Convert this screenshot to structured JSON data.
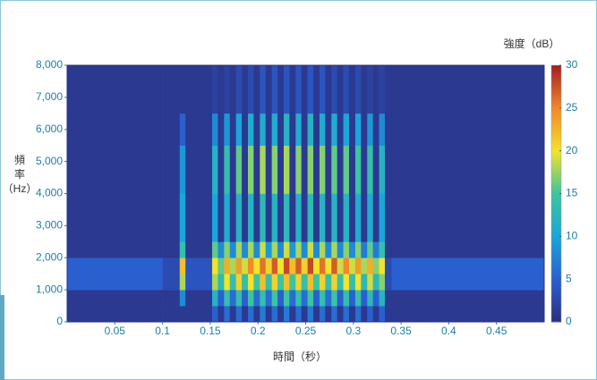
{
  "chart_data": {
    "type": "heatmap",
    "colorbar_title": "強度（dB）",
    "ylabel": [
      "頻",
      "率",
      "（Hz）"
    ],
    "xlabel": "時間（秒）",
    "xlim": [
      0,
      0.5
    ],
    "xticks": [
      0.05,
      0.1,
      0.15,
      0.2,
      0.25,
      0.3,
      0.35,
      0.4,
      0.45
    ],
    "ylim": [
      0,
      8000
    ],
    "yticks": [
      0,
      {
        "value": 1000,
        "label": "1,000"
      },
      {
        "value": 2000,
        "label": "2,000"
      },
      {
        "value": 3000,
        "label": "3,000"
      },
      {
        "value": 4000,
        "label": "4,000"
      },
      {
        "value": 5000,
        "label": "5,000"
      },
      {
        "value": 6000,
        "label": "6,000"
      },
      {
        "value": 7000,
        "label": "7,000"
      },
      {
        "value": 8000,
        "label": "8,000"
      }
    ],
    "clim": [
      0,
      30
    ],
    "cticks": [
      0,
      5,
      10,
      15,
      20,
      25,
      30
    ],
    "colormap": [
      "#2b2f80",
      "#2a5fd0",
      "#1aa6d8",
      "#3cc4a0",
      "#f2e32c",
      "#f08a2a",
      "#a61d22"
    ],
    "x_edges": [
      0,
      0.1,
      0.118,
      0.124,
      0.15,
      0.152,
      0.158,
      0.1645,
      0.1705,
      0.177,
      0.183,
      0.1895,
      0.1955,
      0.202,
      0.208,
      0.2145,
      0.2205,
      0.227,
      0.233,
      0.2395,
      0.2455,
      0.252,
      0.258,
      0.2645,
      0.2705,
      0.277,
      0.283,
      0.2895,
      0.2955,
      0.302,
      0.308,
      0.3145,
      0.3205,
      0.327,
      0.333,
      0.34,
      0.5
    ],
    "y_edges": [
      0,
      500,
      1000,
      1500,
      2000,
      2500,
      4000,
      5500,
      6500,
      8000
    ],
    "z": [
      [
        1,
        1,
        5,
        5,
        1,
        1,
        1,
        1,
        1
      ],
      [
        1,
        1,
        3,
        3,
        1,
        1,
        1,
        1,
        1
      ],
      [
        1,
        8,
        18,
        22,
        14,
        10,
        9,
        5,
        1
      ],
      [
        1,
        1,
        4,
        4,
        1,
        1,
        1,
        1,
        1
      ],
      [
        1,
        1,
        4,
        4,
        1,
        1,
        1,
        1,
        1
      ],
      [
        5,
        12,
        18,
        20,
        16,
        10,
        12,
        8,
        2
      ],
      [
        1,
        5,
        13,
        16,
        8,
        1,
        1,
        1,
        1
      ],
      [
        6,
        14,
        20,
        23,
        17,
        11,
        14,
        9,
        2
      ],
      [
        1,
        6,
        14,
        18,
        8,
        1,
        1,
        1,
        1
      ],
      [
        6,
        14,
        21,
        24,
        18,
        12,
        16,
        10,
        3
      ],
      [
        1,
        5,
        14,
        19,
        8,
        1,
        1,
        1,
        1
      ],
      [
        6,
        15,
        20,
        25,
        18,
        12,
        17,
        11,
        3
      ],
      [
        1,
        6,
        15,
        20,
        8,
        1,
        1,
        1,
        1
      ],
      [
        7,
        14,
        22,
        26,
        19,
        13,
        18,
        11,
        4
      ],
      [
        1,
        6,
        14,
        21,
        9,
        1,
        1,
        1,
        1
      ],
      [
        6,
        15,
        21,
        27,
        18,
        12,
        17,
        11,
        4
      ],
      [
        1,
        5,
        15,
        20,
        8,
        1,
        1,
        1,
        1
      ],
      [
        7,
        15,
        22,
        28,
        19,
        13,
        18,
        12,
        4
      ],
      [
        1,
        6,
        15,
        22,
        9,
        1,
        1,
        1,
        1
      ],
      [
        6,
        14,
        21,
        27,
        18,
        12,
        17,
        11,
        4
      ],
      [
        1,
        6,
        14,
        21,
        8,
        1,
        1,
        1,
        1
      ],
      [
        7,
        15,
        22,
        28,
        19,
        13,
        17,
        12,
        4
      ],
      [
        1,
        5,
        15,
        20,
        8,
        1,
        1,
        1,
        1
      ],
      [
        6,
        14,
        21,
        26,
        18,
        12,
        17,
        11,
        4
      ],
      [
        1,
        6,
        14,
        20,
        8,
        1,
        1,
        1,
        1
      ],
      [
        6,
        15,
        21,
        27,
        18,
        12,
        16,
        11,
        3
      ],
      [
        1,
        5,
        14,
        19,
        8,
        1,
        1,
        1,
        1
      ],
      [
        6,
        14,
        20,
        25,
        17,
        12,
        16,
        10,
        3
      ],
      [
        1,
        5,
        14,
        19,
        8,
        1,
        1,
        1,
        1
      ],
      [
        6,
        14,
        20,
        24,
        17,
        11,
        15,
        10,
        3
      ],
      [
        1,
        5,
        13,
        18,
        7,
        1,
        1,
        1,
        1
      ],
      [
        5,
        13,
        19,
        23,
        16,
        11,
        14,
        9,
        2
      ],
      [
        1,
        5,
        13,
        17,
        7,
        1,
        1,
        1,
        1
      ],
      [
        5,
        12,
        17,
        20,
        14,
        10,
        12,
        8,
        2
      ],
      [
        1,
        1,
        3,
        3,
        1,
        1,
        1,
        1,
        1
      ],
      [
        1,
        1,
        5,
        5,
        1,
        1,
        1,
        1,
        1
      ]
    ]
  }
}
